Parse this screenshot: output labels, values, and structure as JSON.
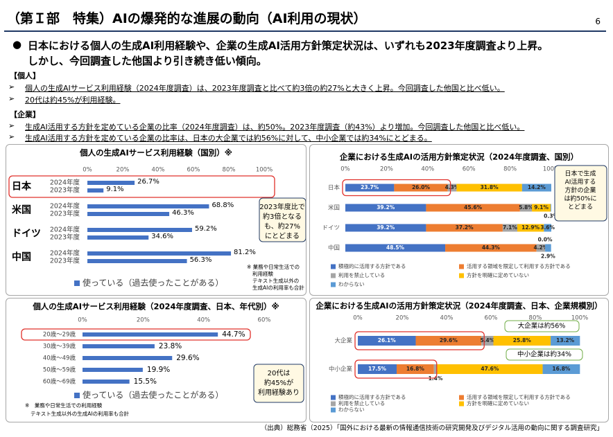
{
  "header": {
    "title": "（第Ｉ部　特集）AIの爆発的な進展の動向（AI利用の現状）",
    "page": "6"
  },
  "summary": [
    "日本における個人の生成AI利用経験や、企業の生成AI活用方針策定状況は、いずれも2023年度調査より上昇。",
    "しかし、今回調査した他国より引き続き低い傾向。"
  ],
  "sections": [
    {
      "heading": "【個人】",
      "bullets": [
        "個人の生成AIサービス利用経験（2024年度調査）は、2023年度調査と比べて約3倍の約27%と大きく上昇。今回調査した他国と比べ低い。",
        "20代は約45%が利用経験。"
      ]
    },
    {
      "heading": "【企業】",
      "bullets": [
        "生成AI活用する方針を定めている企業の比率（2024年度調査）は、約50%。2023年度調査（約43%）より増加。今回調査した他国と比べ低い。",
        "生成AI活用する方針を定めている企業の比率は、日本の大企業では約56%に対して、中小企業では約34%にとどまる。"
      ]
    }
  ],
  "chart_data": [
    {
      "type": "grouped_hbar",
      "title": "個人の生成AIサービス利用経験（国別）※",
      "categories": [
        "日本",
        "米国",
        "ドイツ",
        "中国"
      ],
      "series": [
        {
          "name": "2024年度",
          "color": "#4472c4",
          "values": [
            26.7,
            68.8,
            59.2,
            81.2
          ],
          "value_labels": [
            "26.7%",
            "68.8%",
            "59.2%",
            "81.2%"
          ]
        },
        {
          "name": "2023年度",
          "color": "#4472c4",
          "values": [
            9.1,
            46.3,
            34.6,
            56.3
          ],
          "value_labels": [
            "9.1%",
            "46.3%",
            "34.6%",
            "56.3%"
          ]
        }
      ],
      "xlim": [
        0,
        100
      ],
      "xticks": [
        {
          "value": 0,
          "label": "0%"
        },
        {
          "value": 20,
          "label": "20%"
        },
        {
          "value": 40,
          "label": "40%"
        },
        {
          "value": 60,
          "label": "60%"
        },
        {
          "value": 80,
          "label": "80%"
        },
        {
          "value": 100,
          "label": "100%"
        }
      ],
      "legend": "使っている（過去使ったことがある）",
      "note": [
        "※ 業務や日常生活での",
        "利用経験",
        "テキスト生成以外の",
        "生成AIの利用率も合計"
      ],
      "callouts": [
        [
          "2023年度比で",
          "約3倍となる",
          "も、約27%",
          "にとどまる"
        ]
      ]
    },
    {
      "type": "hbar",
      "title": "個人の生成AIサービス利用経験（2024年度調査、日本、年代別）※",
      "categories": [
        "20歳～29歳",
        "30歳～39歳",
        "40歳～49歳",
        "50歳～59歳",
        "60歳～69歳"
      ],
      "values": [
        44.7,
        23.8,
        29.6,
        19.9,
        15.5
      ],
      "value_labels": [
        "44.7%",
        "23.8%",
        "29.6%",
        "19.9%",
        "15.5%"
      ],
      "color": "#4472c4",
      "xlim": [
        0,
        60
      ],
      "xticks": [
        {
          "value": 0,
          "label": "0%"
        },
        {
          "value": 20,
          "label": "20%"
        },
        {
          "value": 40,
          "label": "40%"
        },
        {
          "value": 60,
          "label": "60%"
        }
      ],
      "legend": "使っている（過去使ったことがある）",
      "note": [
        "※　業務や日常生活での利用経験",
        "テキスト生成以外の生成AIの利用率も合計"
      ],
      "callouts": [
        [
          "20代は",
          "約45%が",
          "利用経験あり"
        ]
      ]
    },
    {
      "type": "stacked_hbar",
      "title": "企業における生成AIの活用方針策定状況（2024年度調査、国別）",
      "categories": [
        "日本",
        "米国",
        "ドイツ",
        "中国"
      ],
      "series": [
        {
          "name": "積極的に活用する方針である",
          "color": "#4472c4",
          "values": [
            23.7,
            39.2,
            39.2,
            48.5
          ],
          "value_labels": [
            "23.7%",
            "39.2%",
            "39.2%",
            "48.5%"
          ]
        },
        {
          "name": "活用する領域を限定して利用する方針である",
          "color": "#ed7d31",
          "values": [
            26.0,
            45.6,
            37.2,
            44.3
          ],
          "value_labels": [
            "26.0%",
            "45.6%",
            "37.2%",
            "44.3%"
          ]
        },
        {
          "name": "利用を禁止している",
          "color": "#a5a5a5",
          "values": [
            4.3,
            5.8,
            7.1,
            4.2
          ],
          "value_labels": [
            "4.3%",
            "5.8%",
            "7.1%",
            "4.2%"
          ]
        },
        {
          "name": "方針を明確に定めていない",
          "color": "#ffc000",
          "values": [
            31.8,
            9.1,
            12.9,
            0.0
          ],
          "value_labels": [
            "31.8%",
            "9.1%",
            "12.9%",
            "0.0%"
          ]
        },
        {
          "name": "わからない",
          "color": "#5b9bd5",
          "values": [
            14.2,
            0.3,
            3.6,
            2.9
          ],
          "value_labels": [
            "14.2%",
            "0.3%",
            "3.6%",
            "2.9%"
          ]
        }
      ],
      "xlim": [
        0,
        100
      ],
      "xticks": [
        {
          "value": 0,
          "label": "0%"
        },
        {
          "value": 20,
          "label": "20%"
        },
        {
          "value": 40,
          "label": "40%"
        },
        {
          "value": 60,
          "label": "60%"
        },
        {
          "value": 80,
          "label": "80%"
        },
        {
          "value": 100,
          "label": "100%"
        }
      ],
      "callouts": [
        [
          "日本で生成",
          "AI活用する",
          "方針の企業",
          "は約50%に",
          "とどまる"
        ]
      ]
    },
    {
      "type": "stacked_hbar",
      "title": "企業における生成AIの活用方針策定状況（2024年度調査、日本、企業規模別）",
      "categories": [
        "大企業",
        "中小企業"
      ],
      "series": [
        {
          "name": "積極的に活用する方針である",
          "color": "#4472c4",
          "values": [
            26.1,
            17.5
          ],
          "value_labels": [
            "26.1%",
            "17.5%"
          ]
        },
        {
          "name": "活用する領域を限定して利用する方針である",
          "color": "#ed7d31",
          "values": [
            29.6,
            16.8
          ],
          "value_labels": [
            "29.6%",
            "16.8%"
          ]
        },
        {
          "name": "利用を禁止している",
          "color": "#a5a5a5",
          "values": [
            5.4,
            1.4
          ],
          "value_labels": [
            "5.4%",
            "1.4%"
          ]
        },
        {
          "name": "方針を明確に定めていない",
          "color": "#ffc000",
          "values": [
            25.8,
            47.6
          ],
          "value_labels": [
            "25.8%",
            "47.6%"
          ]
        },
        {
          "name": "わからない",
          "color": "#5b9bd5",
          "values": [
            13.2,
            16.8
          ],
          "value_labels": [
            "13.2%",
            "16.8%"
          ]
        }
      ],
      "xlim": [
        0,
        100
      ],
      "xticks": [
        {
          "value": 0,
          "label": "0%"
        },
        {
          "value": 20,
          "label": "20%"
        },
        {
          "value": 40,
          "label": "40%"
        },
        {
          "value": 60,
          "label": "60%"
        },
        {
          "value": 80,
          "label": "80%"
        },
        {
          "value": 100,
          "label": "100%"
        }
      ],
      "callouts": [
        [
          "大企業は約56%"
        ],
        [
          "中小企業は約34%"
        ]
      ]
    }
  ],
  "source": "（出典）総務省（2025）「国外における最新の情報通信技術の研究開発及びデジタル活用の動向に関する調査研究」"
}
